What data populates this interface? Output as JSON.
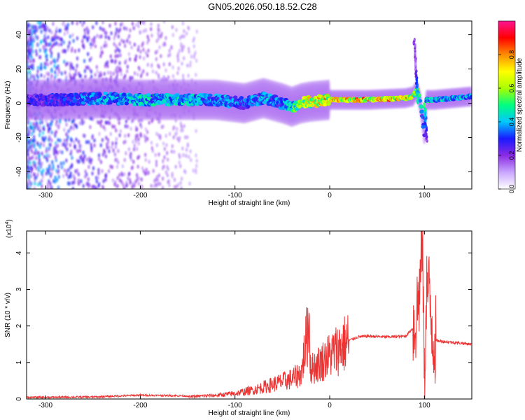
{
  "title": "GN05.2026.050.18.52.C28",
  "chart_data": [
    {
      "type": "heatmap",
      "xlabel": "Height of straight line (km)",
      "ylabel": "Frequency (Hz)",
      "xlim": [
        -320,
        150
      ],
      "ylim": [
        -50,
        48
      ],
      "xticks": [
        -300,
        -200,
        -100,
        0,
        100
      ],
      "xtick_labels": [
        "-300",
        "-200",
        "-100",
        "0",
        "100"
      ],
      "yticks": [
        -40,
        -20,
        0,
        20,
        40
      ],
      "ytick_labels": [
        "-40",
        "-20",
        "0",
        "20",
        "40"
      ],
      "colorbar": {
        "label": "Normalized spectral amplitude",
        "range": [
          0,
          1
        ],
        "ticks": [
          0.0,
          0.2,
          0.4,
          0.6,
          0.8
        ],
        "tick_labels": [
          "0.0",
          "0.2",
          "0.4",
          "0.6",
          "0.8"
        ],
        "colors": [
          "#ffffff",
          "#c9a6ff",
          "#8a2be2",
          "#1a1aff",
          "#00c8ff",
          "#00ff7f",
          "#aaff00",
          "#ffff00",
          "#ff8c00",
          "#ff0000",
          "#ff1493"
        ]
      },
      "ridge": {
        "heights_km": [
          -320,
          -280,
          -240,
          -200,
          -160,
          -120,
          -90,
          -70,
          -50,
          -40,
          -30,
          -20,
          0,
          40,
          80,
          88,
          92,
          95,
          98,
          100,
          102,
          110,
          150
        ],
        "frequency_hz": [
          2,
          2,
          3,
          2,
          2,
          2,
          0,
          3,
          0,
          -2,
          0,
          1,
          2,
          2,
          3,
          4,
          8,
          2,
          -8,
          -18,
          2,
          2,
          4
        ],
        "amplitude": [
          0.3,
          0.35,
          0.45,
          0.5,
          0.5,
          0.45,
          0.4,
          0.45,
          0.4,
          0.55,
          0.7,
          0.8,
          0.85,
          0.9,
          0.85,
          0.8,
          0.6,
          0.5,
          0.4,
          0.3,
          0.55,
          0.5,
          0.45
        ]
      }
    },
    {
      "type": "line",
      "xlabel": "Height of straight line (km)",
      "ylabel": "SNR (10 * v/v)",
      "y_multiplier_label": "(x10",
      "y_multiplier_exp": "4",
      "y_multiplier_close": ")",
      "xlim": [
        -320,
        150
      ],
      "ylim": [
        0,
        4.6
      ],
      "xticks": [
        -300,
        -200,
        -100,
        0,
        100
      ],
      "xtick_labels": [
        "-300",
        "-200",
        "-100",
        "0",
        "100"
      ],
      "yticks": [
        0,
        1,
        2,
        3,
        4
      ],
      "ytick_labels": [
        "0",
        "1",
        "2",
        "3",
        "4"
      ],
      "color": "#ee3333",
      "series": [
        {
          "name": "SNR",
          "x": [
            -320,
            -250,
            -200,
            -150,
            -120,
            -100,
            -80,
            -60,
            -40,
            -30,
            -22,
            -20,
            -10,
            0,
            10,
            20,
            30,
            40,
            60,
            80,
            90,
            95,
            98,
            100,
            102,
            105,
            110,
            130,
            150
          ],
          "y": [
            0.02,
            0.03,
            0.08,
            0.06,
            0.1,
            0.15,
            0.25,
            0.4,
            0.55,
            0.7,
            2.1,
            0.8,
            1.0,
            1.2,
            1.4,
            1.6,
            1.7,
            1.72,
            1.7,
            1.72,
            2.0,
            3.0,
            4.6,
            0.3,
            3.1,
            2.8,
            1.6,
            1.55,
            1.5
          ]
        }
      ]
    }
  ]
}
